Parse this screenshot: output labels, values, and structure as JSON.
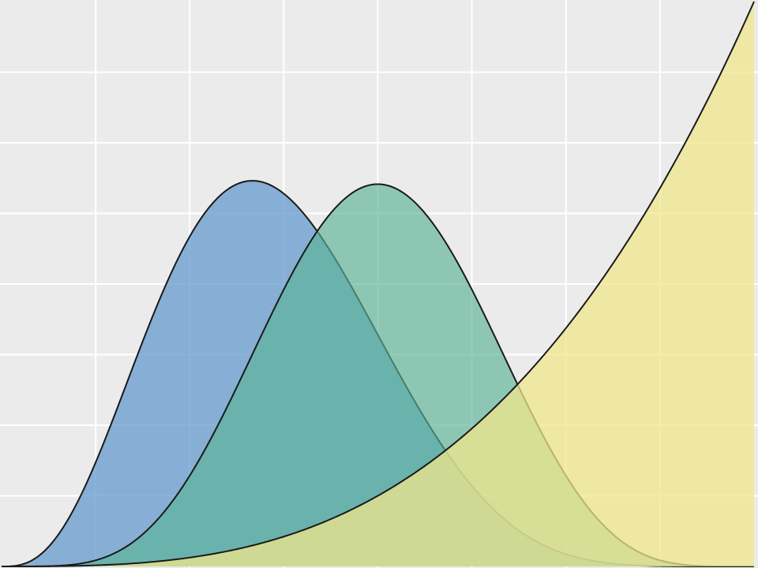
{
  "chart_data": {
    "type": "area",
    "title": "",
    "xlabel": "",
    "ylabel": "",
    "xlim": [
      0,
      1
    ],
    "ylim": [
      0,
      4
    ],
    "grid": true,
    "x_gridlines": [
      0.125,
      0.25,
      0.375,
      0.5,
      0.625,
      0.75,
      0.875
    ],
    "y_gridlines": [
      0.5,
      1.0,
      1.5,
      2.0,
      2.5,
      3.0,
      3.5
    ],
    "background_color": "#ebebeb",
    "grid_color": "#ffffff",
    "edge_color": "#1a1a1a",
    "series": [
      {
        "distribution": "beta",
        "alpha": 4,
        "beta": 7,
        "fill": "#6699cc",
        "opacity": 0.75
      },
      {
        "distribution": "beta",
        "alpha": 6,
        "beta": 6,
        "fill": "#5ab496",
        "opacity": 0.65
      },
      {
        "distribution": "beta",
        "alpha": 4,
        "beta": 1,
        "fill": "#f0e68c",
        "opacity": 0.75
      }
    ]
  }
}
